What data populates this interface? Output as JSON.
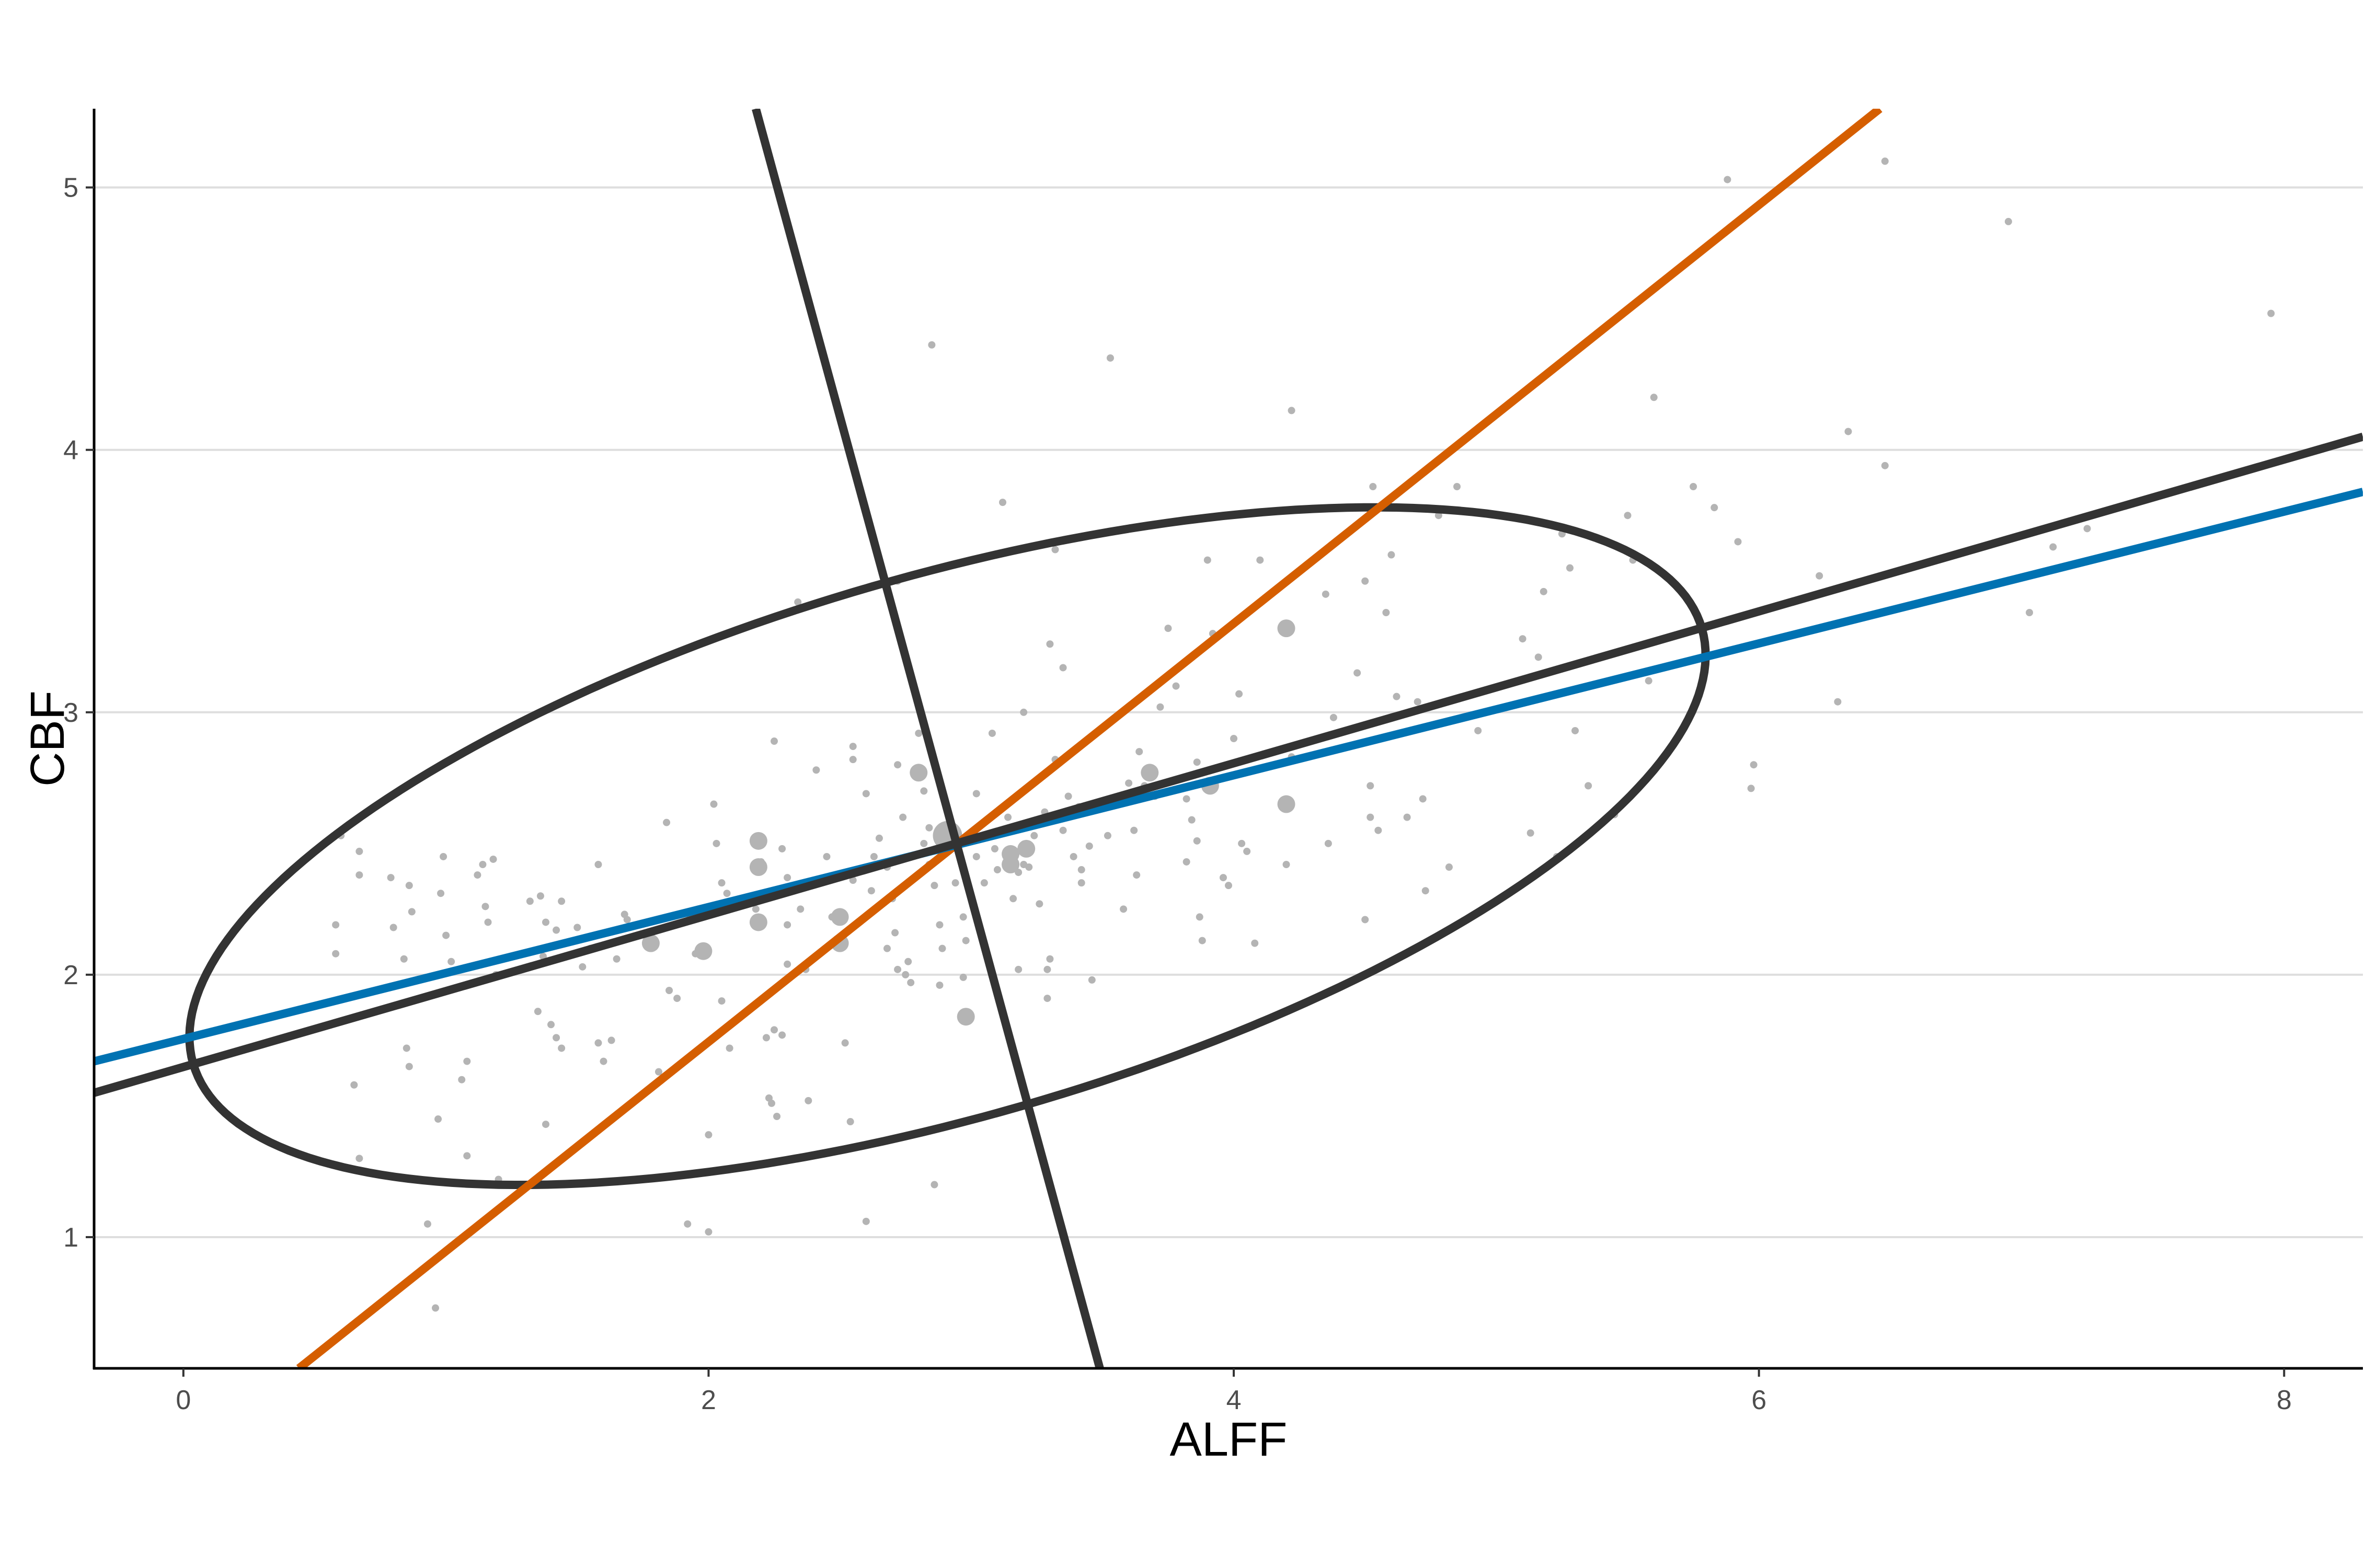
{
  "chart_data": {
    "type": "scatter",
    "title": "",
    "xlabel": "ALFF",
    "ylabel": "CBF",
    "xlim": [
      -0.34,
      8.3
    ],
    "ylim": [
      0.5,
      5.3
    ],
    "xticks": [
      0,
      2,
      4,
      6,
      8
    ],
    "yticks": [
      1,
      2,
      3,
      4,
      5
    ],
    "grid": "horizontal major gridlines only",
    "legend": "none",
    "colors": {
      "points": "#b4b4b4",
      "ellipse_and_axes": "#333333",
      "regression_orange": "#d55e00",
      "regression_blue": "#0072b2",
      "grid": "#dedede",
      "axis": "#000000"
    },
    "lines": [
      {
        "color": "orange",
        "x": [
          0.44,
          6.46
        ],
        "y": [
          0.5,
          5.3
        ]
      },
      {
        "color": "blue",
        "x": [
          -0.34,
          8.3
        ],
        "y": [
          1.67,
          3.84
        ]
      },
      {
        "color": "dark",
        "x": [
          -0.34,
          8.3
        ],
        "y": [
          1.55,
          4.05
        ]
      },
      {
        "color": "dark",
        "x": [
          2.18,
          3.49
        ],
        "y": [
          5.3,
          0.5
        ]
      }
    ],
    "ellipse": {
      "center": [
        2.91,
        2.49
      ],
      "semi_major": 2.99,
      "semi_minor": 1.03,
      "angle_deg": 16.1
    },
    "centroid": {
      "x": 2.91,
      "y": 2.53,
      "size": 3
    },
    "points": [
      [
        0.6,
        2.53,
        1
      ],
      [
        0.67,
        2.47,
        1
      ],
      [
        0.67,
        2.38,
        1
      ],
      [
        0.58,
        2.19,
        1
      ],
      [
        0.58,
        2.08,
        1
      ],
      [
        0.65,
        1.58,
        1
      ],
      [
        0.67,
        1.3,
        1
      ],
      [
        0.79,
        2.37,
        1
      ],
      [
        0.8,
        2.18,
        1
      ],
      [
        0.86,
        2.34,
        1
      ],
      [
        0.87,
        2.24,
        1
      ],
      [
        0.84,
        2.06,
        1
      ],
      [
        0.85,
        1.72,
        1
      ],
      [
        0.86,
        1.65,
        1
      ],
      [
        0.93,
        1.05,
        1
      ],
      [
        0.96,
        0.73,
        1
      ],
      [
        0.99,
        2.45,
        1
      ],
      [
        0.98,
        2.31,
        1
      ],
      [
        1.0,
        2.15,
        1
      ],
      [
        1.02,
        2.05,
        1
      ],
      [
        0.97,
        1.45,
        1
      ],
      [
        1.06,
        1.6,
        1
      ],
      [
        1.08,
        1.67,
        1
      ],
      [
        1.08,
        1.31,
        1
      ],
      [
        1.12,
        2.38,
        1
      ],
      [
        1.14,
        2.42,
        1
      ],
      [
        1.15,
        2.26,
        1
      ],
      [
        1.16,
        2.2,
        1
      ],
      [
        1.18,
        2.44,
        1
      ],
      [
        1.19,
        2.0,
        1
      ],
      [
        1.2,
        1.22,
        1
      ],
      [
        1.32,
        2.28,
        1
      ],
      [
        1.36,
        2.3,
        1
      ],
      [
        1.38,
        2.2,
        1
      ],
      [
        1.42,
        2.17,
        1
      ],
      [
        1.44,
        2.28,
        1
      ],
      [
        1.37,
        2.07,
        1
      ],
      [
        1.35,
        1.86,
        1
      ],
      [
        1.4,
        1.81,
        1
      ],
      [
        1.42,
        1.76,
        1
      ],
      [
        1.44,
        1.72,
        1
      ],
      [
        1.38,
        1.43,
        1
      ],
      [
        1.5,
        2.18,
        1
      ],
      [
        1.55,
        2.1,
        1
      ],
      [
        1.52,
        2.03,
        1
      ],
      [
        1.58,
        2.42,
        1
      ],
      [
        1.58,
        1.74,
        1
      ],
      [
        1.6,
        1.67,
        1
      ],
      [
        1.63,
        1.75,
        1
      ],
      [
        1.65,
        2.06,
        1
      ],
      [
        1.68,
        2.23,
        1
      ],
      [
        1.69,
        2.21,
        1
      ],
      [
        1.78,
        2.15,
        1
      ],
      [
        1.78,
        2.12,
        2
      ],
      [
        1.85,
        1.94,
        1
      ],
      [
        1.88,
        1.91,
        1
      ],
      [
        1.84,
        2.58,
        1
      ],
      [
        1.81,
        1.63,
        1
      ],
      [
        1.93,
        2.22,
        1
      ],
      [
        1.96,
        2.25,
        1
      ],
      [
        1.95,
        2.08,
        1
      ],
      [
        1.98,
        2.09,
        2
      ],
      [
        2.02,
        2.65,
        1
      ],
      [
        2.03,
        2.5,
        1
      ],
      [
        2.05,
        2.35,
        1
      ],
      [
        2.07,
        2.31,
        1
      ],
      [
        2.05,
        1.9,
        1
      ],
      [
        2.08,
        1.72,
        1
      ],
      [
        2.0,
        1.02,
        1
      ],
      [
        1.92,
        1.05,
        1
      ],
      [
        2.0,
        1.39,
        1
      ],
      [
        2.19,
        2.51,
        2
      ],
      [
        2.2,
        2.43,
        1
      ],
      [
        2.19,
        2.41,
        2
      ],
      [
        2.19,
        2.2,
        2
      ],
      [
        2.18,
        2.25,
        1
      ],
      [
        2.25,
        2.89,
        1
      ],
      [
        2.28,
        2.48,
        1
      ],
      [
        2.3,
        2.37,
        1
      ],
      [
        2.3,
        2.19,
        1
      ],
      [
        2.3,
        2.04,
        1
      ],
      [
        2.22,
        1.76,
        1
      ],
      [
        2.25,
        1.79,
        1
      ],
      [
        2.28,
        1.77,
        1
      ],
      [
        2.23,
        1.53,
        1
      ],
      [
        2.24,
        1.51,
        1
      ],
      [
        2.26,
        1.46,
        1
      ],
      [
        2.35,
        2.25,
        1
      ],
      [
        2.37,
        2.02,
        1
      ],
      [
        2.38,
        1.52,
        1
      ],
      [
        2.41,
        2.78,
        1
      ],
      [
        2.45,
        2.45,
        1
      ],
      [
        2.47,
        2.22,
        1
      ],
      [
        2.5,
        2.22,
        2
      ],
      [
        2.5,
        2.12,
        2
      ],
      [
        2.55,
        2.87,
        1
      ],
      [
        2.55,
        2.82,
        1
      ],
      [
        2.55,
        2.36,
        1
      ],
      [
        2.52,
        1.74,
        1
      ],
      [
        2.54,
        1.44,
        1
      ],
      [
        2.34,
        3.42,
        1
      ],
      [
        2.6,
        2.69,
        1
      ],
      [
        2.62,
        2.32,
        1
      ],
      [
        2.65,
        2.52,
        1
      ],
      [
        2.68,
        2.41,
        1
      ],
      [
        2.68,
        2.1,
        1
      ],
      [
        2.7,
        2.29,
        1
      ],
      [
        2.71,
        2.16,
        1
      ],
      [
        2.72,
        2.02,
        1
      ],
      [
        2.74,
        2.6,
        1
      ],
      [
        2.75,
        2.0,
        1
      ],
      [
        2.76,
        2.05,
        1
      ],
      [
        2.77,
        1.97,
        1
      ],
      [
        2.63,
        2.45,
        1
      ],
      [
        2.6,
        1.06,
        1
      ],
      [
        2.72,
        3.5,
        1
      ],
      [
        2.72,
        2.8,
        1
      ],
      [
        2.8,
        2.77,
        2
      ],
      [
        2.8,
        2.92,
        1
      ],
      [
        2.82,
        2.7,
        1
      ],
      [
        2.84,
        2.56,
        1
      ],
      [
        2.82,
        2.5,
        1
      ],
      [
        2.84,
        2.42,
        1
      ],
      [
        2.86,
        2.34,
        1
      ],
      [
        2.88,
        2.19,
        1
      ],
      [
        2.89,
        2.1,
        1
      ],
      [
        2.88,
        1.96,
        1
      ],
      [
        2.86,
        1.2,
        1
      ],
      [
        2.85,
        4.4,
        1
      ],
      [
        2.94,
        2.35,
        1
      ],
      [
        2.97,
        2.22,
        1
      ],
      [
        2.98,
        2.13,
        1
      ],
      [
        2.97,
        1.99,
        1
      ],
      [
        2.98,
        1.84,
        2
      ],
      [
        3.02,
        2.69,
        1
      ],
      [
        3.02,
        2.45,
        1
      ],
      [
        3.05,
        2.35,
        1
      ],
      [
        3.08,
        2.92,
        1
      ],
      [
        3.09,
        2.48,
        1
      ],
      [
        3.1,
        2.4,
        1
      ],
      [
        3.1,
        1.93,
        1
      ],
      [
        3.12,
        3.8,
        1
      ],
      [
        3.14,
        2.6,
        1
      ],
      [
        3.15,
        2.46,
        2
      ],
      [
        3.15,
        2.42,
        2
      ],
      [
        3.16,
        2.29,
        1
      ],
      [
        3.18,
        2.39,
        1
      ],
      [
        3.18,
        2.02,
        1
      ],
      [
        3.2,
        3.0,
        1
      ],
      [
        3.2,
        2.42,
        1
      ],
      [
        3.21,
        2.48,
        2
      ],
      [
        3.22,
        2.41,
        1
      ],
      [
        3.24,
        2.53,
        1
      ],
      [
        3.26,
        2.27,
        1
      ],
      [
        3.28,
        2.62,
        1
      ],
      [
        3.29,
        1.91,
        1
      ],
      [
        3.29,
        2.02,
        1
      ],
      [
        3.3,
        3.26,
        1
      ],
      [
        3.3,
        2.06,
        1
      ],
      [
        3.32,
        2.82,
        1
      ],
      [
        3.35,
        2.55,
        1
      ],
      [
        3.35,
        3.17,
        1
      ],
      [
        3.37,
        2.68,
        1
      ],
      [
        3.39,
        2.45,
        1
      ],
      [
        3.41,
        2.64,
        1
      ],
      [
        3.42,
        2.35,
        1
      ],
      [
        3.42,
        2.4,
        1
      ],
      [
        3.45,
        2.49,
        1
      ],
      [
        3.46,
        1.98,
        1
      ],
      [
        3.32,
        3.62,
        1
      ],
      [
        3.53,
        4.35,
        1
      ],
      [
        3.58,
        2.25,
        1
      ],
      [
        3.52,
        2.53,
        1
      ],
      [
        3.6,
        2.73,
        1
      ],
      [
        3.62,
        2.55,
        1
      ],
      [
        3.63,
        2.38,
        1
      ],
      [
        3.64,
        2.85,
        1
      ],
      [
        3.66,
        2.72,
        1
      ],
      [
        3.68,
        2.77,
        2
      ],
      [
        3.7,
        2.68,
        1
      ],
      [
        3.72,
        3.02,
        1
      ],
      [
        3.75,
        3.32,
        1
      ],
      [
        3.78,
        3.1,
        1
      ],
      [
        3.82,
        2.67,
        1
      ],
      [
        3.82,
        2.43,
        1
      ],
      [
        3.84,
        2.59,
        1
      ],
      [
        3.86,
        2.81,
        1
      ],
      [
        3.86,
        2.51,
        1
      ],
      [
        3.87,
        2.22,
        1
      ],
      [
        3.88,
        2.13,
        1
      ],
      [
        3.91,
        2.72,
        2
      ],
      [
        3.92,
        3.3,
        1
      ],
      [
        3.9,
        3.58,
        1
      ],
      [
        3.96,
        2.37,
        1
      ],
      [
        3.98,
        2.34,
        1
      ],
      [
        4.0,
        2.9,
        1
      ],
      [
        4.02,
        3.07,
        1
      ],
      [
        4.03,
        2.5,
        1
      ],
      [
        4.05,
        2.47,
        1
      ],
      [
        4.08,
        2.12,
        1
      ],
      [
        4.1,
        3.58,
        1
      ],
      [
        4.2,
        3.32,
        2
      ],
      [
        4.2,
        2.65,
        2
      ],
      [
        4.22,
        2.83,
        1
      ],
      [
        4.2,
        2.42,
        1
      ],
      [
        4.22,
        4.15,
        1
      ],
      [
        4.35,
        3.45,
        1
      ],
      [
        4.36,
        2.5,
        1
      ],
      [
        4.38,
        2.98,
        1
      ],
      [
        4.47,
        3.15,
        1
      ],
      [
        4.5,
        3.5,
        1
      ],
      [
        4.5,
        2.21,
        1
      ],
      [
        4.52,
        2.72,
        1
      ],
      [
        4.52,
        2.6,
        1
      ],
      [
        4.53,
        3.86,
        1
      ],
      [
        4.55,
        2.55,
        1
      ],
      [
        4.58,
        3.38,
        1
      ],
      [
        4.6,
        3.6,
        1
      ],
      [
        4.62,
        3.06,
        1
      ],
      [
        4.66,
        2.6,
        1
      ],
      [
        4.7,
        3.04,
        1
      ],
      [
        4.72,
        2.67,
        1
      ],
      [
        4.73,
        2.32,
        1
      ],
      [
        4.78,
        3.75,
        1
      ],
      [
        4.82,
        2.41,
        1
      ],
      [
        4.85,
        3.86,
        1
      ],
      [
        4.93,
        2.93,
        1
      ],
      [
        5.1,
        3.28,
        1
      ],
      [
        5.13,
        2.54,
        1
      ],
      [
        5.16,
        3.21,
        1
      ],
      [
        5.18,
        3.46,
        1
      ],
      [
        5.23,
        2.45,
        1
      ],
      [
        5.25,
        3.68,
        1
      ],
      [
        5.28,
        3.55,
        1
      ],
      [
        5.3,
        2.93,
        1
      ],
      [
        5.35,
        2.72,
        1
      ],
      [
        5.45,
        2.61,
        1
      ],
      [
        5.5,
        3.75,
        1
      ],
      [
        5.52,
        3.58,
        1
      ],
      [
        5.58,
        3.12,
        1
      ],
      [
        5.6,
        4.2,
        1
      ],
      [
        5.75,
        3.86,
        1
      ],
      [
        5.77,
        3.35,
        1
      ],
      [
        5.83,
        3.78,
        1
      ],
      [
        5.88,
        5.03,
        1
      ],
      [
        5.92,
        3.65,
        1
      ],
      [
        5.98,
        2.8,
        1
      ],
      [
        5.97,
        2.71,
        1
      ],
      [
        6.23,
        3.52,
        1
      ],
      [
        6.3,
        3.04,
        1
      ],
      [
        6.34,
        4.07,
        1
      ],
      [
        6.48,
        5.1,
        1
      ],
      [
        6.48,
        3.94,
        1
      ],
      [
        6.95,
        4.87,
        1
      ],
      [
        7.03,
        3.38,
        1
      ],
      [
        7.12,
        3.63,
        1
      ],
      [
        7.25,
        3.7,
        1
      ],
      [
        7.95,
        4.52,
        1
      ]
    ]
  }
}
